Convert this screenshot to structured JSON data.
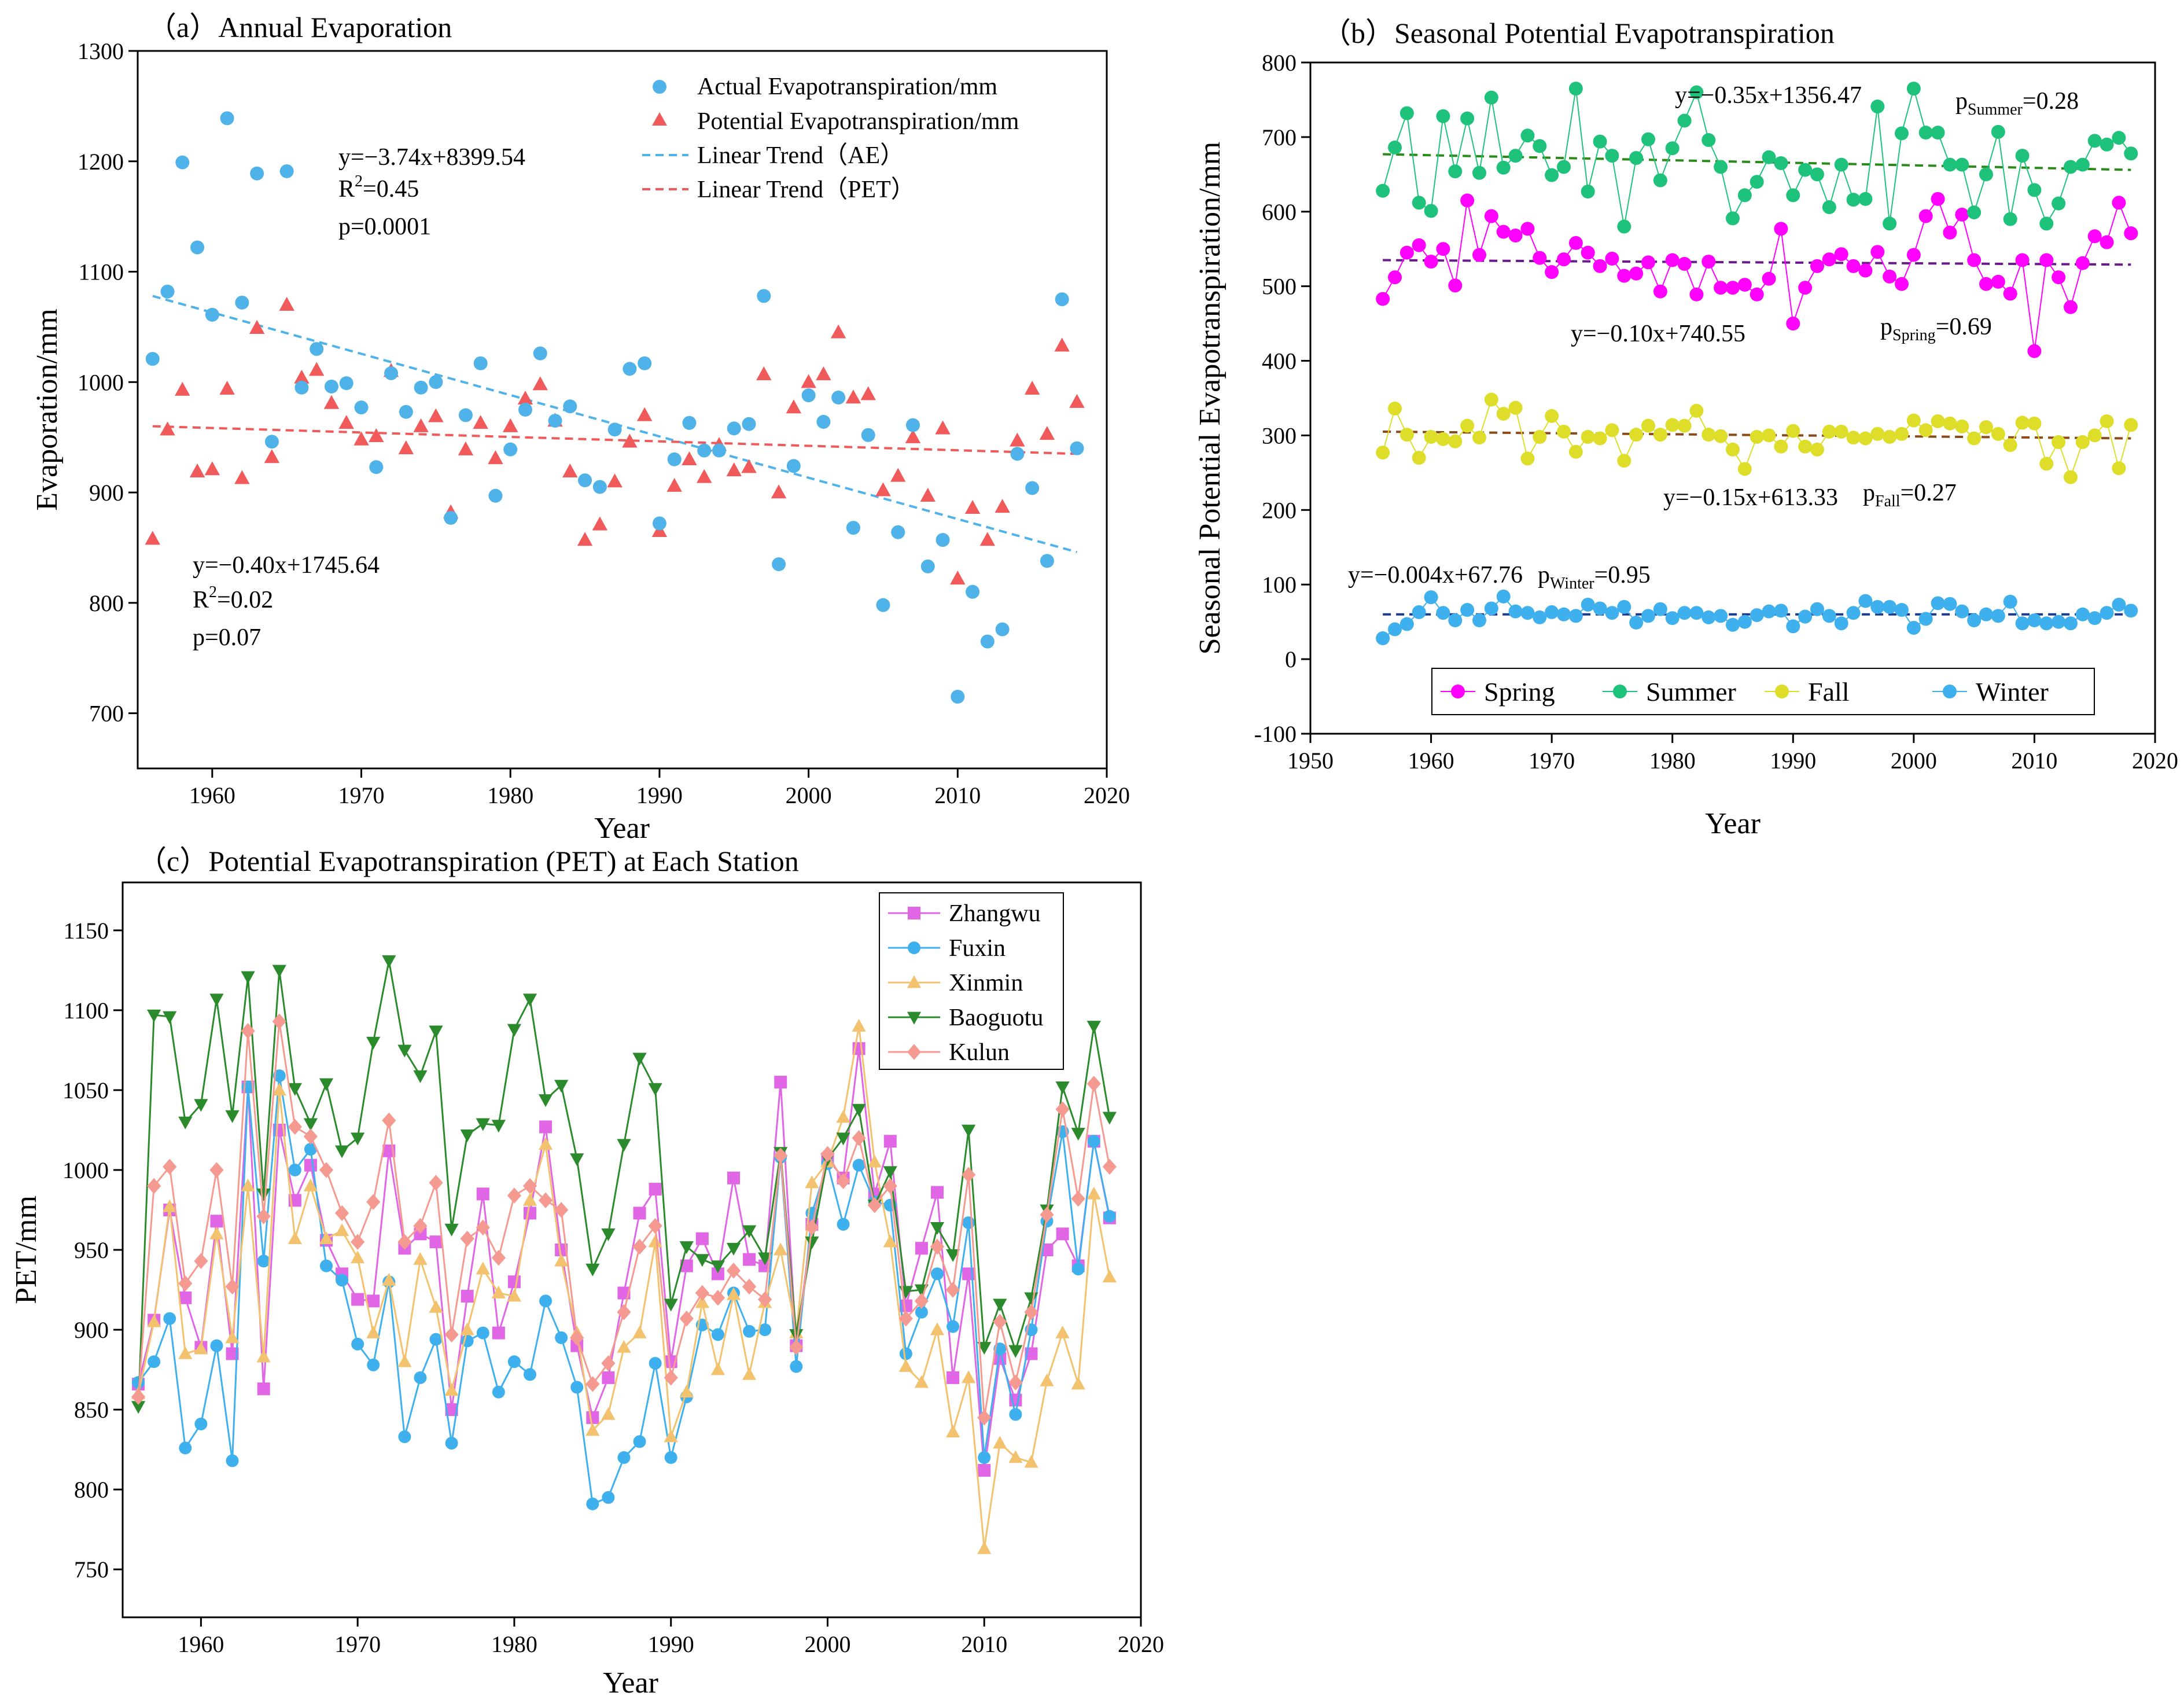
{
  "chart_data": [
    {
      "id": "a",
      "type": "scatter",
      "title": "（a）Annual Evaporation",
      "xlabel": "Year",
      "ylabel": "Evaporation/mm",
      "xlim": [
        1955,
        2020
      ],
      "ylim": [
        650,
        1300
      ],
      "xticks": [
        1960,
        1970,
        1980,
        1990,
        2000,
        2010,
        2020
      ],
      "yticks": [
        700,
        800,
        900,
        1000,
        1100,
        1200,
        1300
      ],
      "colors": {
        "ae": "#4fb3ea",
        "pet": "#f05a5a",
        "ae_trend": "#4fb3ea",
        "pet_trend": "#f05a5a"
      },
      "legend": [
        "Actual Evapotranspiration/mm",
        "Potential Evapotranspiration/mm",
        "Linear Trend（AE）",
        "Linear Trend（PET）"
      ],
      "years": [
        1956,
        1957,
        1958,
        1959,
        1960,
        1961,
        1962,
        1963,
        1964,
        1965,
        1966,
        1967,
        1968,
        1969,
        1970,
        1971,
        1972,
        1973,
        1974,
        1975,
        1976,
        1977,
        1978,
        1979,
        1980,
        1981,
        1982,
        1983,
        1984,
        1985,
        1986,
        1987,
        1988,
        1989,
        1990,
        1991,
        1992,
        1993,
        1994,
        1995,
        1996,
        1997,
        1998,
        1999,
        2000,
        2001,
        2002,
        2003,
        2004,
        2005,
        2006,
        2007,
        2008,
        2009,
        2010,
        2011,
        2012,
        2013,
        2014,
        2015,
        2016,
        2017,
        2018
      ],
      "ae": [
        1021,
        1082,
        1199,
        1122,
        1061,
        1239,
        1072,
        1189,
        946,
        1191,
        995,
        1030,
        996,
        999,
        977,
        923,
        1008,
        973,
        995,
        1000,
        877,
        970,
        1017,
        897,
        939,
        975,
        1026,
        965,
        978,
        911,
        905,
        957,
        1012,
        1017,
        872,
        930,
        963,
        938,
        938,
        958,
        962,
        1078,
        835,
        924,
        988,
        964,
        986,
        868,
        952,
        798,
        864,
        961,
        833,
        857,
        715,
        810,
        765,
        776,
        935,
        904,
        838,
        1075,
        940
      ],
      "pet": [
        858,
        957,
        993,
        919,
        921,
        994,
        913,
        1049,
        932,
        1070,
        1004,
        1011,
        981,
        963,
        948,
        951,
        1010,
        940,
        960,
        969,
        882,
        939,
        963,
        931,
        960,
        985,
        998,
        965,
        919,
        857,
        871,
        910,
        946,
        970,
        865,
        906,
        930,
        914,
        943,
        920,
        923,
        1007,
        900,
        977,
        1000,
        1007,
        1045,
        986,
        989,
        902,
        915,
        950,
        897,
        958,
        822,
        886,
        857,
        887,
        947,
        994,
        953,
        1033,
        982
      ],
      "ae_trend": {
        "start": [
          1956,
          1078
        ],
        "end": [
          2018,
          846
        ]
      },
      "pet_trend": {
        "start": [
          1956,
          960
        ],
        "end": [
          2018,
          935
        ]
      },
      "annotations": {
        "ae_eq": "y=−3.74x+8399.54",
        "ae_r2_prefix": "R",
        "ae_r2_value": "=0.45",
        "ae_p": "p=0.0001",
        "pet_eq": "y=−0.40x+1745.64",
        "pet_r2_prefix": "R",
        "pet_r2_value": "=0.02",
        "pet_p": "p=0.07",
        "r2_sup": "2"
      }
    },
    {
      "id": "b",
      "type": "line",
      "title": "（b）Seasonal Potential Evapotranspiration",
      "xlabel": "Year",
      "ylabel": "Seasonal Potential Evapotranspiration/mm",
      "xlim": [
        1950,
        2020
      ],
      "ylim": [
        -100,
        800
      ],
      "xticks": [
        1950,
        1960,
        1970,
        1980,
        1990,
        2000,
        2010,
        2020
      ],
      "yticks": [
        -100,
        0,
        100,
        200,
        300,
        400,
        500,
        600,
        700,
        800
      ],
      "years_start": 1956,
      "series": [
        {
          "name": "Spring",
          "color": "#ff00ff",
          "trend_color": "#6a1a8a",
          "trend": [
            535,
            529
          ],
          "values": [
            483,
            512,
            545,
            555,
            533,
            550,
            501,
            615,
            542,
            594,
            573,
            568,
            577,
            538,
            519,
            536,
            558,
            545,
            527,
            537,
            514,
            517,
            532,
            493,
            535,
            530,
            489,
            533,
            498,
            498,
            502,
            489,
            510,
            577,
            450,
            498,
            527,
            536,
            543,
            527,
            521,
            546,
            513,
            503,
            542,
            594,
            617,
            572,
            596,
            535,
            503,
            506,
            490,
            535,
            413,
            535,
            512,
            472,
            531,
            567,
            559,
            612,
            571
          ]
        },
        {
          "name": "Summer",
          "color": "#1fc27a",
          "trend_color": "#2a8a1a",
          "trend": [
            677,
            656
          ],
          "values": [
            628,
            686,
            732,
            612,
            601,
            728,
            654,
            725,
            652,
            753,
            659,
            675,
            702,
            688,
            649,
            660,
            765,
            627,
            694,
            675,
            580,
            672,
            697,
            642,
            685,
            722,
            760,
            696,
            660,
            591,
            622,
            640,
            673,
            665,
            622,
            656,
            650,
            606,
            663,
            616,
            617,
            741,
            584,
            705,
            765,
            706,
            706,
            663,
            663,
            599,
            650,
            707,
            590,
            675,
            629,
            584,
            611,
            660,
            663,
            695,
            690,
            699,
            678
          ]
        },
        {
          "name": "Fall",
          "color": "#dede2a",
          "trend_color": "#8a4a1a",
          "trend": [
            305,
            296
          ],
          "values": [
            277,
            336,
            301,
            270,
            298,
            295,
            292,
            313,
            297,
            348,
            329,
            337,
            269,
            298,
            326,
            305,
            278,
            298,
            296,
            307,
            266,
            301,
            313,
            301,
            314,
            313,
            333,
            301,
            299,
            281,
            255,
            298,
            300,
            285,
            306,
            285,
            281,
            305,
            305,
            297,
            296,
            302,
            298,
            302,
            320,
            307,
            319,
            316,
            312,
            296,
            311,
            302,
            287,
            317,
            316,
            262,
            291,
            244,
            291,
            300,
            319,
            256,
            314
          ]
        },
        {
          "name": "Winter",
          "color": "#3fb0ee",
          "trend_color": "#1a3a8a",
          "trend": [
            60,
            60
          ],
          "values": [
            28,
            40,
            47,
            63,
            83,
            62,
            52,
            66,
            52,
            68,
            84,
            64,
            62,
            56,
            63,
            60,
            58,
            73,
            68,
            62,
            70,
            49,
            58,
            67,
            55,
            62,
            62,
            56,
            58,
            46,
            50,
            59,
            64,
            65,
            44,
            57,
            67,
            58,
            48,
            62,
            78,
            70,
            70,
            66,
            42,
            54,
            75,
            74,
            64,
            52,
            60,
            58,
            77,
            48,
            52,
            48,
            50,
            48,
            60,
            55,
            62,
            73,
            65
          ]
        }
      ],
      "annotations": {
        "summer_eq": "y=−0.35x+1356.47",
        "summer_p_base": "p",
        "summer_p_sub": "Summer",
        "summer_p_val": "=0.28",
        "spring_eq": "y=−0.10x+740.55",
        "spring_p_base": "p",
        "spring_p_sub": "Spring",
        "spring_p_val": "=0.69",
        "fall_eq": "y=−0.15x+613.33",
        "fall_p_base": "p",
        "fall_p_sub": "Fall",
        "fall_p_val": "=0.27",
        "winter_eq": "y=−0.004x+67.76",
        "winter_p_base": "p",
        "winter_p_sub": "Winter",
        "winter_p_val": "=0.95"
      },
      "legend": [
        "Spring",
        "Summer",
        "Fall",
        "Winter"
      ]
    },
    {
      "id": "c",
      "type": "line",
      "title": "（c）Potential Evapotranspiration (PET) at Each Station",
      "xlabel": "Year",
      "ylabel": "PET/mm",
      "xlim": [
        1955,
        2020
      ],
      "ylim": [
        720,
        1180
      ],
      "xticks": [
        1960,
        1970,
        1980,
        1990,
        2000,
        2010,
        2020
      ],
      "yticks": [
        750,
        800,
        850,
        900,
        950,
        1000,
        1050,
        1100,
        1150
      ],
      "years_start": 1956,
      "series": [
        {
          "name": "Zhangwu",
          "color": "#e066e6",
          "marker": "square",
          "values": [
            866,
            906,
            975,
            920,
            889,
            968,
            885,
            1052,
            863,
            1025,
            981,
            1003,
            956,
            935,
            919,
            918,
            1012,
            951,
            960,
            955,
            850,
            921,
            985,
            898,
            930,
            973,
            1027,
            950,
            890,
            845,
            870,
            923,
            973,
            988,
            880,
            940,
            957,
            935,
            995,
            944,
            940,
            1055,
            890,
            966,
            1007,
            995,
            1076,
            985,
            1018,
            915,
            951,
            986,
            870,
            935,
            812,
            882,
            856,
            885,
            950,
            960,
            940,
            1018,
            970
          ]
        },
        {
          "name": "Fuxin",
          "color": "#3fb0ee",
          "marker": "circle",
          "values": [
            867,
            880,
            907,
            826,
            841,
            890,
            818,
            1052,
            943,
            1059,
            1000,
            1013,
            940,
            931,
            891,
            878,
            930,
            833,
            870,
            894,
            829,
            893,
            898,
            861,
            880,
            872,
            918,
            895,
            864,
            791,
            795,
            820,
            830,
            879,
            820,
            858,
            903,
            897,
            923,
            899,
            900,
            1008,
            877,
            973,
            1004,
            966,
            1003,
            980,
            978,
            885,
            911,
            935,
            902,
            967,
            820,
            888,
            847,
            900,
            968,
            1024,
            938,
            1018,
            971
          ]
        },
        {
          "name": "Xinmin",
          "color": "#f3c26e",
          "marker": "triangle",
          "values": [
            860,
            905,
            977,
            885,
            888,
            960,
            895,
            990,
            883,
            1050,
            957,
            990,
            957,
            962,
            945,
            898,
            931,
            880,
            944,
            914,
            862,
            900,
            938,
            923,
            921,
            981,
            1016,
            943,
            898,
            837,
            847,
            889,
            898,
            955,
            833,
            861,
            917,
            875,
            922,
            872,
            917,
            950,
            898,
            992,
            1005,
            1033,
            1090,
            1005,
            955,
            877,
            867,
            900,
            836,
            870,
            763,
            829,
            820,
            817,
            868,
            898,
            866,
            985,
            933
          ]
        },
        {
          "name": "Baoguotu",
          "color": "#2b8a2b",
          "marker": "triangle-down",
          "values": [
            852,
            1097,
            1096,
            1030,
            1041,
            1107,
            1034,
            1121,
            985,
            1125,
            1051,
            1029,
            1054,
            1012,
            1020,
            1080,
            1131,
            1075,
            1059,
            1087,
            963,
            1022,
            1029,
            1028,
            1088,
            1107,
            1044,
            1053,
            1007,
            938,
            960,
            1016,
            1070,
            1051,
            916,
            952,
            944,
            940,
            951,
            962,
            945,
            1011,
            897,
            955,
            1007,
            1020,
            1038,
            978,
            999,
            924,
            925,
            964,
            947,
            1025,
            889,
            916,
            887,
            920,
            975,
            1052,
            1023,
            1090,
            1033
          ]
        },
        {
          "name": "Kulun",
          "color": "#f59a90",
          "marker": "diamond",
          "values": [
            858,
            990,
            1002,
            929,
            943,
            1000,
            927,
            1087,
            971,
            1093,
            1027,
            1021,
            1000,
            973,
            955,
            980,
            1031,
            955,
            965,
            992,
            897,
            957,
            964,
            945,
            984,
            990,
            981,
            975,
            895,
            866,
            879,
            911,
            952,
            965,
            870,
            907,
            923,
            920,
            937,
            927,
            919,
            1009,
            889,
            964,
            1010,
            993,
            1020,
            978,
            990,
            907,
            918,
            952,
            925,
            997,
            845,
            905,
            867,
            911,
            972,
            1038,
            982,
            1054,
            1002
          ]
        }
      ],
      "legend": [
        "Zhangwu",
        "Fuxin",
        "Xinmin",
        "Baoguotu",
        "Kulun"
      ]
    }
  ]
}
